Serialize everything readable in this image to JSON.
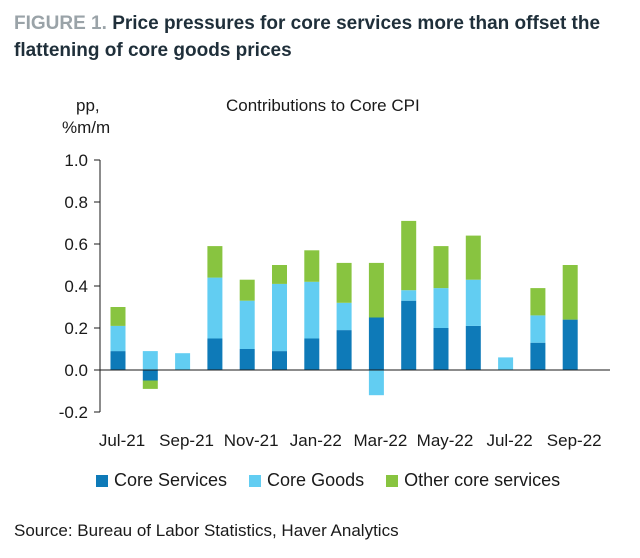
{
  "figure": {
    "label": "FIGURE 1.",
    "title": "Price pressures for core services more than offset the flattening of core goods prices"
  },
  "source": "Source: Bureau of Labor Statistics, Haver Analytics",
  "chart_data": {
    "type": "bar",
    "stacked": true,
    "title": "Contributions to Core CPI",
    "ylabel": "pp, %m/m",
    "ylabel_lines": [
      "pp,",
      "%m/m"
    ],
    "ylim": [
      -0.2,
      1.0
    ],
    "yticks": [
      {
        "value": 1.0,
        "label": "1.0"
      },
      {
        "value": 0.8,
        "label": "0.8"
      },
      {
        "value": 0.6,
        "label": "0.6"
      },
      {
        "value": 0.4,
        "label": "0.4"
      },
      {
        "value": 0.2,
        "label": "0.2"
      },
      {
        "value": 0.0,
        "label": "0.0"
      },
      {
        "value": -0.2,
        "label": "-0.2"
      }
    ],
    "categories": [
      "Jul-21",
      "Aug-21",
      "Sep-21",
      "Oct-21",
      "Nov-21",
      "Dec-21",
      "Jan-22",
      "Feb-22",
      "Mar-22",
      "Apr-22",
      "May-22",
      "Jun-22",
      "Jul-22",
      "Aug-22",
      "Sep-22"
    ],
    "xtick_labels": [
      {
        "index": 0,
        "label": "Jul-21"
      },
      {
        "index": 2,
        "label": "Sep-21"
      },
      {
        "index": 4,
        "label": "Nov-21"
      },
      {
        "index": 6,
        "label": "Jan-22"
      },
      {
        "index": 8,
        "label": "Mar-22"
      },
      {
        "index": 10,
        "label": "May-22"
      },
      {
        "index": 12,
        "label": "Jul-22"
      },
      {
        "index": 14,
        "label": "Sep-22"
      }
    ],
    "legend_position": "bottom",
    "grid": false,
    "series": [
      {
        "name": "Core Services",
        "color": "#0e7ab8",
        "values": [
          0.09,
          -0.05,
          0.0,
          0.15,
          0.1,
          0.09,
          0.15,
          0.19,
          0.25,
          0.33,
          0.2,
          0.21,
          0.0,
          0.13,
          0.24
        ]
      },
      {
        "name": "Core Goods",
        "color": "#62cdf2",
        "values": [
          0.12,
          0.09,
          0.08,
          0.29,
          0.23,
          0.32,
          0.27,
          0.13,
          -0.12,
          0.05,
          0.19,
          0.22,
          0.06,
          0.13,
          0.0
        ]
      },
      {
        "name": "Other core services",
        "color": "#88c440",
        "values": [
          0.09,
          -0.04,
          0.0,
          0.15,
          0.1,
          0.09,
          0.15,
          0.19,
          0.26,
          0.33,
          0.2,
          0.21,
          0.0,
          0.13,
          0.26
        ]
      }
    ]
  }
}
